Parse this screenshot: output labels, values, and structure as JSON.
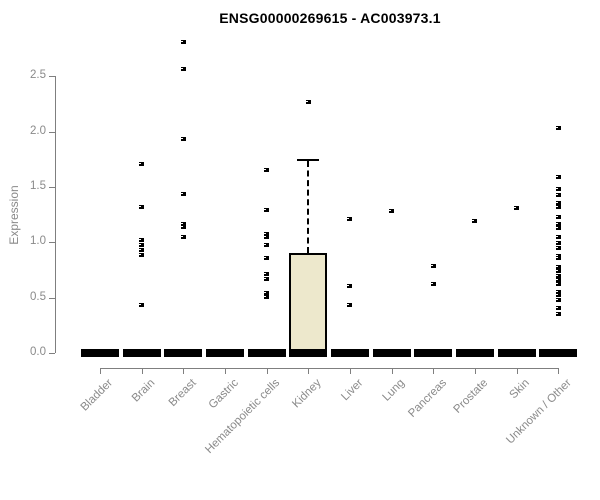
{
  "chart_data": {
    "type": "boxplot",
    "title": "ENSG00000269615 - AC003973.1",
    "ylabel": "Expression",
    "xlabel": "",
    "y_ticks": [
      0.0,
      0.5,
      1.0,
      1.5,
      2.0,
      2.5
    ],
    "ylim": [
      0.0,
      2.9
    ],
    "grid": false,
    "legend": "none",
    "colors": {
      "box_fill": "#ede8cc",
      "box_stroke": "#000000",
      "point": "#000000",
      "axis": "#7f7f7f",
      "tick_text": "#8a8a8a",
      "title_text": "#000000"
    },
    "categories": [
      {
        "label": "Bladder",
        "median": 0.0,
        "points": []
      },
      {
        "label": "Brain",
        "median": 0.0,
        "points": [
          1.71,
          1.32,
          1.02,
          0.98,
          0.93,
          0.89,
          0.43
        ]
      },
      {
        "label": "Breast",
        "median": 0.0,
        "points": [
          2.81,
          2.57,
          1.93,
          1.44,
          1.17,
          1.14,
          1.05
        ]
      },
      {
        "label": "Gastric",
        "median": 0.0,
        "points": []
      },
      {
        "label": "Hematopoietic cells",
        "median": 0.0,
        "points": [
          1.65,
          1.29,
          1.08,
          1.05,
          0.98,
          0.86,
          0.71,
          0.67,
          0.54,
          0.51
        ]
      },
      {
        "label": "Kidney",
        "median": 0.0,
        "box": {
          "q1": 0.0,
          "q3": 0.9,
          "whisker_high": 1.75
        },
        "points": [
          2.27
        ]
      },
      {
        "label": "Liver",
        "median": 0.0,
        "points": [
          1.21,
          0.61,
          0.43
        ]
      },
      {
        "label": "Lung",
        "median": 0.0,
        "points": [
          1.28
        ]
      },
      {
        "label": "Pancreas",
        "median": 0.0,
        "points": [
          0.79,
          0.62
        ]
      },
      {
        "label": "Prostate",
        "median": 0.0,
        "points": [
          1.19
        ]
      },
      {
        "label": "Skin",
        "median": 0.0,
        "points": [
          1.31
        ]
      },
      {
        "label": "Unknown / Other",
        "median": 0.0,
        "points": [
          2.03,
          1.59,
          1.48,
          1.43,
          1.36,
          1.32,
          1.23,
          1.17,
          1.13,
          1.05,
          0.99,
          0.95,
          0.88,
          0.86,
          0.78,
          0.74,
          0.7,
          0.66,
          0.62,
          0.55,
          0.52,
          0.48,
          0.41,
          0.35
        ]
      }
    ]
  }
}
